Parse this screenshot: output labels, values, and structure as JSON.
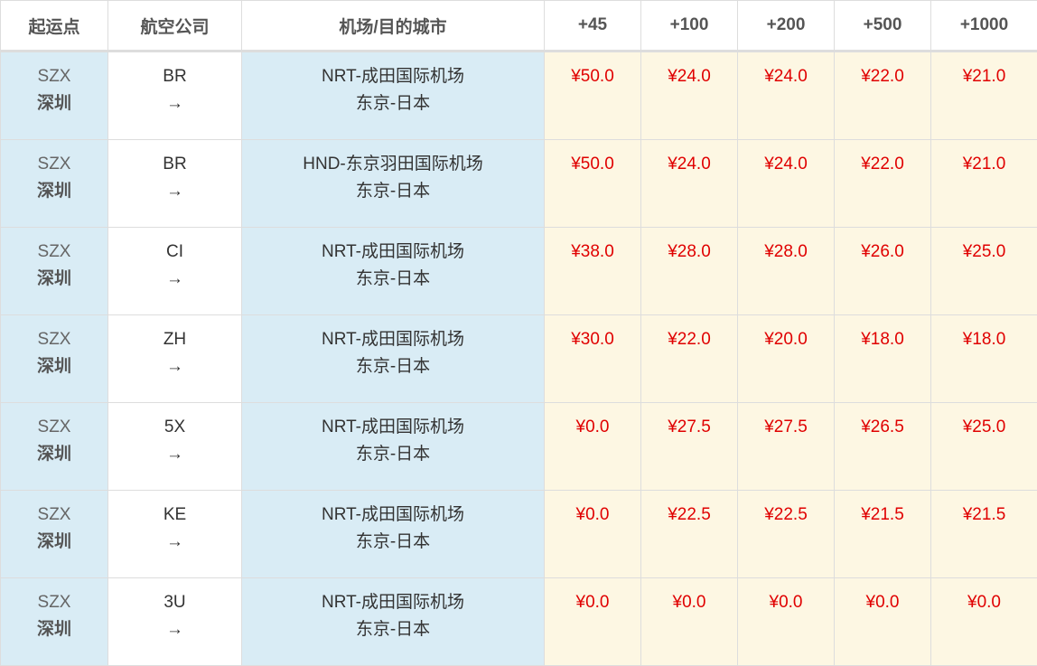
{
  "headers": [
    "起运点",
    "航空公司",
    "机场/目的城市",
    "+45",
    "+100",
    "+200",
    "+500",
    "+1000"
  ],
  "arrow": "→",
  "rows": [
    {
      "origin_code": "SZX",
      "origin_city": "深圳",
      "airline": "BR",
      "airport": "NRT-成田国际机场",
      "city": "东京-日本",
      "prices": [
        "¥50.0",
        "¥24.0",
        "¥24.0",
        "¥22.0",
        "¥21.0"
      ]
    },
    {
      "origin_code": "SZX",
      "origin_city": "深圳",
      "airline": "BR",
      "airport": "HND-东京羽田国际机场",
      "city": "东京-日本",
      "prices": [
        "¥50.0",
        "¥24.0",
        "¥24.0",
        "¥22.0",
        "¥21.0"
      ]
    },
    {
      "origin_code": "SZX",
      "origin_city": "深圳",
      "airline": "CI",
      "airport": "NRT-成田国际机场",
      "city": "东京-日本",
      "prices": [
        "¥38.0",
        "¥28.0",
        "¥28.0",
        "¥26.0",
        "¥25.0"
      ]
    },
    {
      "origin_code": "SZX",
      "origin_city": "深圳",
      "airline": "ZH",
      "airport": "NRT-成田国际机场",
      "city": "东京-日本",
      "prices": [
        "¥30.0",
        "¥22.0",
        "¥20.0",
        "¥18.0",
        "¥18.0"
      ]
    },
    {
      "origin_code": "SZX",
      "origin_city": "深圳",
      "airline": "5X",
      "airport": "NRT-成田国际机场",
      "city": "东京-日本",
      "prices": [
        "¥0.0",
        "¥27.5",
        "¥27.5",
        "¥26.5",
        "¥25.0"
      ]
    },
    {
      "origin_code": "SZX",
      "origin_city": "深圳",
      "airline": "KE",
      "airport": "NRT-成田国际机场",
      "city": "东京-日本",
      "prices": [
        "¥0.0",
        "¥22.5",
        "¥22.5",
        "¥21.5",
        "¥21.5"
      ]
    },
    {
      "origin_code": "SZX",
      "origin_city": "深圳",
      "airline": "3U",
      "airport": "NRT-成田国际机场",
      "city": "东京-日本",
      "prices": [
        "¥0.0",
        "¥0.0",
        "¥0.0",
        "¥0.0",
        "¥0.0"
      ]
    }
  ]
}
